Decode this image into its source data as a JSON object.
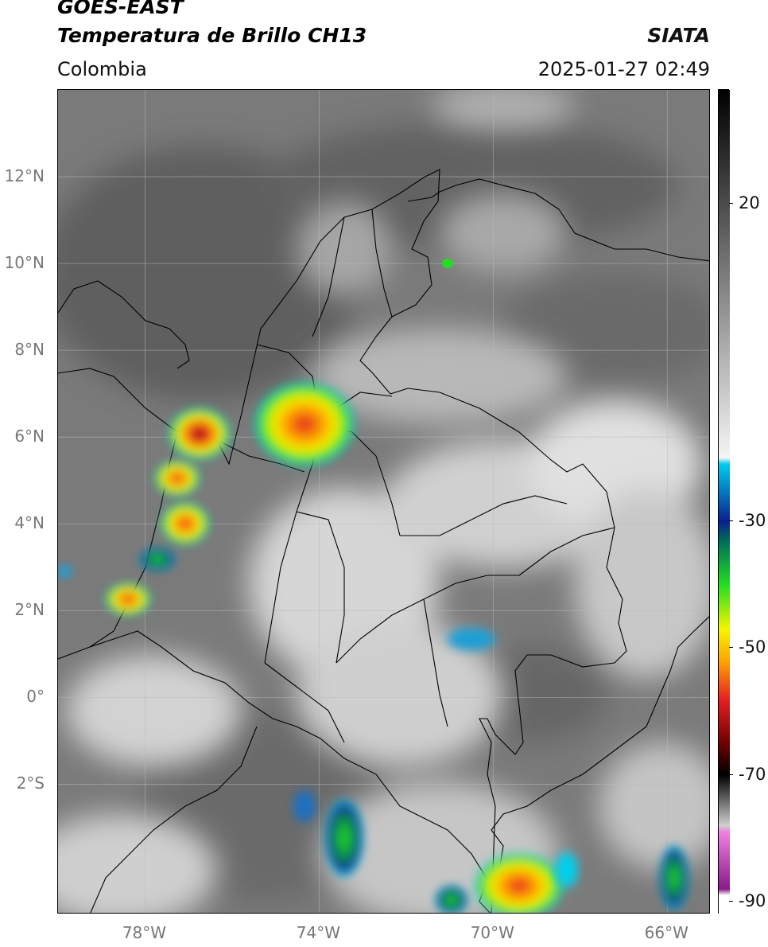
{
  "header": {
    "satellite": "GOES-EAST",
    "product": "Temperatura de Brillo CH13",
    "brand": "SIATA",
    "region": "Colombia",
    "timestamp": "2025-01-27 02:49"
  },
  "map": {
    "lon_range": [
      -80,
      -65
    ],
    "lat_range": [
      -5,
      14
    ],
    "lat_labels": [
      {
        "lat": 12,
        "text": "12°N"
      },
      {
        "lat": 10,
        "text": "10°N"
      },
      {
        "lat": 8,
        "text": "8°N"
      },
      {
        "lat": 6,
        "text": "6°N"
      },
      {
        "lat": 4,
        "text": "4°N"
      },
      {
        "lat": 2,
        "text": "2°N"
      },
      {
        "lat": 0,
        "text": "0°"
      },
      {
        "lat": -2,
        "text": "2°S"
      }
    ],
    "lon_labels": [
      {
        "lon": -78,
        "text": "78°W"
      },
      {
        "lon": -74,
        "text": "74°W"
      },
      {
        "lon": -70,
        "text": "70°W"
      },
      {
        "lon": -66,
        "text": "66°W"
      }
    ],
    "gridlines": true,
    "colors": {
      "background_gray": "#7a7a7a",
      "cloud_gray": "#d8d8d8",
      "border": "#000000"
    }
  },
  "colorbar": {
    "units": "°C",
    "range": [
      -92,
      38
    ],
    "ticks": [
      {
        "value": 20,
        "text": "20"
      },
      {
        "value": -30,
        "text": "-30"
      },
      {
        "value": -50,
        "text": "-50"
      },
      {
        "value": -70,
        "text": "-70"
      },
      {
        "value": -90,
        "text": "-90"
      }
    ],
    "color_stops": [
      {
        "value": 38,
        "color": "#000000"
      },
      {
        "value": -20,
        "color": "#f5f5f5"
      },
      {
        "value": -21,
        "color": "#00ccee"
      },
      {
        "value": -30,
        "color": "#0a1f8f"
      },
      {
        "value": -33,
        "color": "#006b5a"
      },
      {
        "value": -40,
        "color": "#22dd22"
      },
      {
        "value": -47,
        "color": "#f5f500"
      },
      {
        "value": -52,
        "color": "#ffa500"
      },
      {
        "value": -58,
        "color": "#e62222"
      },
      {
        "value": -65,
        "color": "#700000"
      },
      {
        "value": -70,
        "color": "#000000"
      },
      {
        "value": -78,
        "color": "#d0d0d0"
      },
      {
        "value": -79,
        "color": "#f080e0"
      },
      {
        "value": -88,
        "color": "#8a1a8a"
      },
      {
        "value": -89,
        "color": "#ffffff"
      },
      {
        "value": -92,
        "color": "#ffffff"
      }
    ]
  }
}
